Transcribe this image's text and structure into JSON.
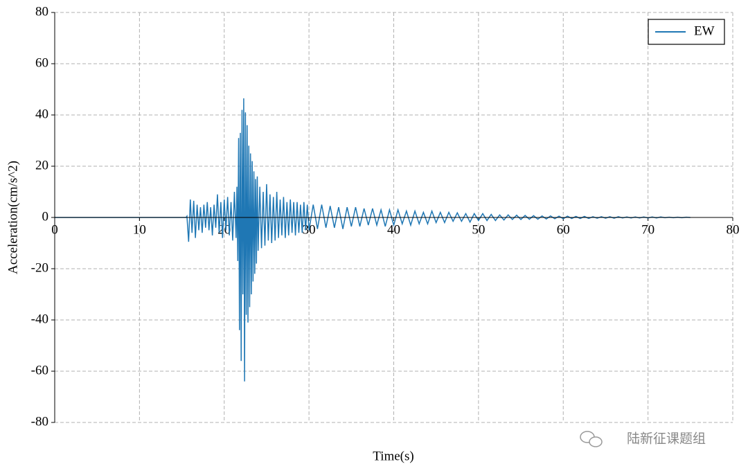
{
  "chart_data": {
    "type": "line",
    "xlabel": "Time(s)",
    "ylabel": "Acceleration(cm/s^2)",
    "xlim": [
      0,
      80
    ],
    "ylim": [
      -80,
      80
    ],
    "xticks": [
      0,
      10,
      20,
      30,
      40,
      50,
      60,
      70,
      80
    ],
    "yticks": [
      -80,
      -60,
      -40,
      -20,
      0,
      20,
      40,
      60,
      80
    ],
    "grid": true,
    "legend": "upper right",
    "watermark": "陆新征课题组",
    "x": [
      0,
      15.5,
      15.6,
      15.8,
      16.0,
      16.2,
      16.4,
      16.6,
      16.8,
      17.0,
      17.2,
      17.4,
      17.6,
      17.8,
      18.0,
      18.2,
      18.4,
      18.6,
      18.8,
      19.0,
      19.2,
      19.4,
      19.6,
      19.8,
      20.0,
      20.2,
      20.4,
      20.6,
      20.8,
      21.0,
      21.2,
      21.4,
      21.5,
      21.6,
      21.7,
      21.8,
      21.9,
      22.0,
      22.1,
      22.2,
      22.3,
      22.4,
      22.5,
      22.6,
      22.7,
      22.8,
      22.9,
      23.0,
      23.1,
      23.2,
      23.3,
      23.4,
      23.5,
      23.6,
      23.7,
      23.8,
      23.9,
      24.0,
      24.2,
      24.4,
      24.6,
      24.8,
      25.0,
      25.2,
      25.4,
      25.6,
      25.8,
      26.0,
      26.2,
      26.4,
      26.6,
      26.8,
      27.0,
      27.2,
      27.4,
      27.6,
      27.8,
      28.0,
      28.2,
      28.4,
      28.6,
      28.8,
      29.0,
      29.2,
      29.4,
      29.6,
      29.8,
      30.0,
      30.5,
      31,
      31.5,
      32,
      32.5,
      33,
      33.5,
      34,
      34.5,
      35,
      35.5,
      36,
      36.5,
      37,
      37.5,
      38,
      38.5,
      39,
      39.5,
      40,
      40.5,
      41,
      41.5,
      42,
      42.5,
      43,
      43.5,
      44,
      44.5,
      45,
      45.5,
      46,
      46.5,
      47,
      47.5,
      48,
      48.5,
      49,
      49.5,
      50,
      50.5,
      51,
      51.5,
      52,
      52.5,
      53,
      53.5,
      54,
      54.5,
      55,
      55.5,
      56,
      56.5,
      57,
      57.5,
      58,
      58.5,
      59,
      59.5,
      60,
      60.5,
      61,
      61.5,
      62,
      62.5,
      63,
      63.5,
      64,
      64.5,
      65,
      65.5,
      66,
      66.5,
      67,
      67.5,
      68,
      68.5,
      69,
      69.5,
      70,
      70.5,
      71,
      71.5,
      72,
      72.5,
      73,
      73.5,
      74,
      74.5,
      75
    ],
    "series": [
      {
        "name": "EW",
        "color": "#1f77b4",
        "values": [
          0,
          0,
          0.5,
          -9.5,
          7,
          -6,
          6.5,
          -8,
          5,
          -5,
          4,
          -6,
          5,
          -4,
          6,
          -5,
          4,
          -7,
          5,
          -4,
          9,
          -6,
          6,
          -8,
          7,
          -5,
          8,
          -7,
          6,
          -9,
          10,
          -8,
          12,
          -17,
          31,
          -44,
          33,
          -56,
          42,
          -30,
          46.5,
          -64,
          41,
          -38,
          36,
          -41,
          28,
          -35,
          25,
          -30,
          22,
          -25,
          18,
          -22,
          15,
          -18,
          16,
          -13,
          12,
          -12,
          10,
          -11,
          13,
          -9,
          9,
          -10,
          8,
          -9,
          10,
          -8,
          7,
          -7,
          8,
          -8,
          6,
          -7,
          7,
          -6,
          6,
          -7,
          6,
          -6,
          5,
          -6,
          6,
          -5,
          5,
          -5,
          5,
          -4.5,
          5,
          -4,
          4.5,
          -4,
          4,
          -4.5,
          4,
          -3.5,
          4,
          -3.5,
          3.5,
          -3,
          3.5,
          -3,
          3,
          -3.5,
          3,
          -3,
          3,
          -2.5,
          2.5,
          -3,
          2.5,
          -2.5,
          2,
          -2.5,
          2.5,
          -2,
          2,
          -2,
          2,
          -1.5,
          1.8,
          -1.5,
          1.5,
          -1.8,
          1.5,
          -1.2,
          1.5,
          -1.2,
          1.2,
          -1.2,
          1,
          -1,
          1,
          -0.8,
          0.9,
          -0.8,
          0.8,
          -0.7,
          0.7,
          -0.7,
          0.6,
          -0.6,
          0.6,
          -0.5,
          0.5,
          -0.5,
          0.5,
          -0.4,
          0.4,
          -0.4,
          0.4,
          -0.4,
          0.3,
          -0.3,
          0.3,
          -0.3,
          0.3,
          -0.3,
          0.3,
          -0.2,
          0.2,
          -0.2,
          0.2,
          -0.2,
          0.2,
          -0.2,
          0.2,
          -0.2,
          0.2,
          -0.1,
          0.1,
          -0.1,
          0.1,
          -0.1,
          0.1,
          0
        ]
      }
    ]
  }
}
